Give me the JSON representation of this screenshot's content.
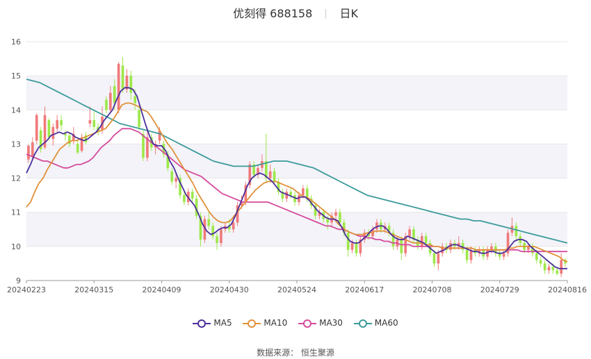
{
  "header": {
    "stock_name": "优刻得",
    "stock_code": "688158",
    "period": "日K"
  },
  "legend": {
    "items": [
      {
        "label": "MA5",
        "color": "#4b2e9a"
      },
      {
        "label": "MA10",
        "color": "#e0913a"
      },
      {
        "label": "MA30",
        "color": "#d44a9c"
      },
      {
        "label": "MA60",
        "color": "#3b9a9a"
      }
    ]
  },
  "footer": {
    "source_label": "数据来源：",
    "source_name": "恒生聚源"
  },
  "colors": {
    "up": "#f07a7a",
    "down": "#9de84a",
    "band": "#f3f3f9",
    "grid": "#e6e6e6"
  },
  "chart_data": {
    "type": "candlestick",
    "y_ticks": [
      "9",
      "10",
      "11",
      "12",
      "13",
      "14",
      "15",
      "16"
    ],
    "ylim": [
      9,
      16
    ],
    "x_ticks": [
      "20240223",
      "20240315",
      "20240409",
      "20240430",
      "20240524",
      "20240617",
      "20240708",
      "20240729",
      "20240816"
    ],
    "candles": [
      [
        12.55,
        12.95,
        12.45,
        12.98
      ],
      [
        12.65,
        13.05,
        12.55,
        13.2
      ],
      [
        13.1,
        13.85,
        13.0,
        13.9
      ],
      [
        13.4,
        12.85,
        12.75,
        13.5
      ],
      [
        12.9,
        13.85,
        12.85,
        14.1
      ],
      [
        13.7,
        13.2,
        13.1,
        13.75
      ],
      [
        13.15,
        13.5,
        12.95,
        13.6
      ],
      [
        13.45,
        13.7,
        13.35,
        13.85
      ],
      [
        13.7,
        13.55,
        13.4,
        13.85
      ],
      [
        13.3,
        13.25,
        13.1,
        13.4
      ],
      [
        13.25,
        13.0,
        12.9,
        13.35
      ],
      [
        13.1,
        13.3,
        13.0,
        13.5
      ],
      [
        13.0,
        12.75,
        12.7,
        13.1
      ],
      [
        12.8,
        13.2,
        12.75,
        13.3
      ],
      [
        13.25,
        13.05,
        13.0,
        13.35
      ],
      [
        13.6,
        13.7,
        13.5,
        14.1
      ],
      [
        13.7,
        13.5,
        13.4,
        13.95
      ],
      [
        13.5,
        13.35,
        13.25,
        13.6
      ],
      [
        13.4,
        13.8,
        13.3,
        14.1
      ],
      [
        14.3,
        14.0,
        13.9,
        14.4
      ],
      [
        14.0,
        14.5,
        13.95,
        14.7
      ],
      [
        14.7,
        14.2,
        14.0,
        14.9
      ],
      [
        14.0,
        15.35,
        13.9,
        15.4
      ],
      [
        15.3,
        14.6,
        14.5,
        15.55
      ],
      [
        14.6,
        15.0,
        14.5,
        15.2
      ],
      [
        15.0,
        14.5,
        14.3,
        15.15
      ],
      [
        14.4,
        14.2,
        14.0,
        14.6
      ],
      [
        14.0,
        13.5,
        13.4,
        14.1
      ],
      [
        13.3,
        12.6,
        12.5,
        13.4
      ],
      [
        12.6,
        13.2,
        12.5,
        13.4
      ],
      [
        13.2,
        12.9,
        12.8,
        13.3
      ],
      [
        12.9,
        13.0,
        12.7,
        13.1
      ],
      [
        13.1,
        13.4,
        13.0,
        13.5
      ],
      [
        13.0,
        12.7,
        12.6,
        13.1
      ],
      [
        12.7,
        12.3,
        12.2,
        12.8
      ],
      [
        12.2,
        11.9,
        11.8,
        12.3
      ],
      [
        11.9,
        12.0,
        11.7,
        12.1
      ],
      [
        12.0,
        11.5,
        11.4,
        12.1
      ],
      [
        11.5,
        11.3,
        11.2,
        11.6
      ],
      [
        11.3,
        11.6,
        11.2,
        11.7
      ],
      [
        11.6,
        11.4,
        11.3,
        11.7
      ],
      [
        11.4,
        10.9,
        10.8,
        11.5
      ],
      [
        10.9,
        10.2,
        10.0,
        11.0
      ],
      [
        10.2,
        10.8,
        10.1,
        10.9
      ],
      [
        10.8,
        10.6,
        10.5,
        11.0
      ],
      [
        10.6,
        10.3,
        10.2,
        10.7
      ],
      [
        10.3,
        10.1,
        9.9,
        10.4
      ],
      [
        10.1,
        10.5,
        10.0,
        10.6
      ],
      [
        10.5,
        10.6,
        10.4,
        10.7
      ],
      [
        10.6,
        10.5,
        10.4,
        10.8
      ],
      [
        10.5,
        10.7,
        10.4,
        10.9
      ],
      [
        10.7,
        11.2,
        10.6,
        11.3
      ],
      [
        11.2,
        11.3,
        11.1,
        11.5
      ],
      [
        11.3,
        11.8,
        11.2,
        11.9
      ],
      [
        11.8,
        12.4,
        11.7,
        12.5
      ],
      [
        12.4,
        12.1,
        12.0,
        12.5
      ],
      [
        12.1,
        12.3,
        12.0,
        12.4
      ],
      [
        12.3,
        12.5,
        12.2,
        12.7
      ],
      [
        12.5,
        12.0,
        11.9,
        13.3
      ],
      [
        12.0,
        12.2,
        11.9,
        12.4
      ],
      [
        12.2,
        11.9,
        11.8,
        12.3
      ],
      [
        11.9,
        11.6,
        11.5,
        12.0
      ],
      [
        11.6,
        11.4,
        11.3,
        11.7
      ],
      [
        11.4,
        11.6,
        11.3,
        11.7
      ],
      [
        11.6,
        11.5,
        11.4,
        11.7
      ],
      [
        11.5,
        11.3,
        11.2,
        11.6
      ],
      [
        11.3,
        11.5,
        11.2,
        11.6
      ],
      [
        11.5,
        11.7,
        11.4,
        11.8
      ],
      [
        11.7,
        11.4,
        11.3,
        11.8
      ],
      [
        11.4,
        11.2,
        11.1,
        11.5
      ],
      [
        11.2,
        10.9,
        10.8,
        11.3
      ],
      [
        10.9,
        11.0,
        10.8,
        11.1
      ],
      [
        11.0,
        10.8,
        10.7,
        11.1
      ],
      [
        10.8,
        10.7,
        10.5,
        10.9
      ],
      [
        10.7,
        10.9,
        10.6,
        11.0
      ],
      [
        10.9,
        11.0,
        10.7,
        11.1
      ],
      [
        11.0,
        10.7,
        10.6,
        11.1
      ],
      [
        10.7,
        10.4,
        10.3,
        10.8
      ],
      [
        10.4,
        9.9,
        9.7,
        10.5
      ],
      [
        9.9,
        10.1,
        9.8,
        10.2
      ],
      [
        10.1,
        9.8,
        9.7,
        10.2
      ],
      [
        9.8,
        10.2,
        9.7,
        10.3
      ],
      [
        10.2,
        10.4,
        10.1,
        10.5
      ],
      [
        10.4,
        10.3,
        10.2,
        10.5
      ],
      [
        10.3,
        10.5,
        10.2,
        10.6
      ],
      [
        10.5,
        10.7,
        10.4,
        10.8
      ],
      [
        10.7,
        10.5,
        10.4,
        10.8
      ],
      [
        10.5,
        10.6,
        10.4,
        10.7
      ],
      [
        10.6,
        10.4,
        10.3,
        10.7
      ],
      [
        10.4,
        10.0,
        9.9,
        10.5
      ],
      [
        10.0,
        10.2,
        9.9,
        10.3
      ],
      [
        10.2,
        9.8,
        9.6,
        10.3
      ],
      [
        9.8,
        10.3,
        9.7,
        10.4
      ],
      [
        10.3,
        10.5,
        10.2,
        10.6
      ],
      [
        10.5,
        10.2,
        10.1,
        10.6
      ],
      [
        10.2,
        10.0,
        9.9,
        10.3
      ],
      [
        10.0,
        10.3,
        9.9,
        10.4
      ],
      [
        10.3,
        10.1,
        10.0,
        10.4
      ],
      [
        10.1,
        9.8,
        9.7,
        10.2
      ],
      [
        9.8,
        9.5,
        9.4,
        9.9
      ],
      [
        9.5,
        9.8,
        9.3,
        9.9
      ],
      [
        9.8,
        10.0,
        9.7,
        10.1
      ],
      [
        10.0,
        9.9,
        9.8,
        10.1
      ],
      [
        9.9,
        10.1,
        9.8,
        10.2
      ],
      [
        10.1,
        10.0,
        9.9,
        10.2
      ],
      [
        10.0,
        10.1,
        9.9,
        10.3
      ],
      [
        10.1,
        9.9,
        9.8,
        10.2
      ],
      [
        9.9,
        9.6,
        9.5,
        10.0
      ],
      [
        9.6,
        9.9,
        9.5,
        10.0
      ],
      [
        9.9,
        9.8,
        9.7,
        10.0
      ],
      [
        9.8,
        9.9,
        9.7,
        10.0
      ],
      [
        9.9,
        9.7,
        9.6,
        10.0
      ],
      [
        9.7,
        9.9,
        9.6,
        10.0
      ],
      [
        9.9,
        10.0,
        9.8,
        10.1
      ],
      [
        10.0,
        9.8,
        9.7,
        10.1
      ],
      [
        9.8,
        9.7,
        9.6,
        9.9
      ],
      [
        9.7,
        9.8,
        9.6,
        9.9
      ],
      [
        9.8,
        10.4,
        9.7,
        10.5
      ],
      [
        10.4,
        10.6,
        10.3,
        10.85
      ],
      [
        10.6,
        10.3,
        10.2,
        10.7
      ],
      [
        10.3,
        10.1,
        10.0,
        10.4
      ],
      [
        10.1,
        9.9,
        9.8,
        10.2
      ],
      [
        9.9,
        10.0,
        9.8,
        10.1
      ],
      [
        10.0,
        9.8,
        9.7,
        10.1
      ],
      [
        9.8,
        9.6,
        9.5,
        9.9
      ],
      [
        9.6,
        9.5,
        9.4,
        9.7
      ],
      [
        9.5,
        9.3,
        9.2,
        9.6
      ],
      [
        9.3,
        9.4,
        9.2,
        9.5
      ],
      [
        9.4,
        9.3,
        9.2,
        9.5
      ],
      [
        9.3,
        9.2,
        9.15,
        9.4
      ],
      [
        9.2,
        9.6,
        9.1,
        9.8
      ],
      [
        9.6,
        9.5,
        9.4,
        9.65
      ]
    ],
    "ma5": [
      12.15,
      12.4,
      12.7,
      12.9,
      13.0,
      13.1,
      13.25,
      13.3,
      13.35,
      13.3,
      13.35,
      13.3,
      13.2,
      13.15,
      13.1,
      13.15,
      13.25,
      13.35,
      13.5,
      13.7,
      13.85,
      14.0,
      14.3,
      14.55,
      14.65,
      14.65,
      14.6,
      14.4,
      14.0,
      13.6,
      13.25,
      13.0,
      12.95,
      12.95,
      12.8,
      12.5,
      12.3,
      12.0,
      11.75,
      11.5,
      11.35,
      11.2,
      10.95,
      10.65,
      10.45,
      10.35,
      10.4,
      10.5,
      10.55,
      10.55,
      10.65,
      10.9,
      11.2,
      11.5,
      11.8,
      12.0,
      12.1,
      12.15,
      12.1,
      12.0,
      11.9,
      11.75,
      11.6,
      11.55,
      11.5,
      11.45,
      11.4,
      11.45,
      11.45,
      11.35,
      11.2,
      11.05,
      10.95,
      10.85,
      10.8,
      10.8,
      10.75,
      10.55,
      10.3,
      10.15,
      10.1,
      10.1,
      10.2,
      10.3,
      10.45,
      10.55,
      10.6,
      10.6,
      10.5,
      10.35,
      10.25,
      10.2,
      10.2,
      10.3,
      10.25,
      10.2,
      10.15,
      10.1,
      10.0,
      9.9,
      9.8,
      9.85,
      9.9,
      10.0,
      10.05,
      10.05,
      10.0,
      9.95,
      9.9,
      9.85,
      9.85,
      9.8,
      9.8,
      9.85,
      9.85,
      9.8,
      9.8,
      9.85,
      10.0,
      10.15,
      10.2,
      10.2,
      10.15,
      10.0,
      9.9,
      9.8,
      9.7,
      9.6,
      9.5,
      9.4,
      9.35,
      9.35,
      9.35
    ],
    "ma10": [
      11.15,
      11.3,
      11.6,
      11.85,
      12.0,
      12.25,
      12.45,
      12.65,
      12.85,
      12.95,
      13.05,
      13.1,
      13.1,
      13.15,
      13.2,
      13.25,
      13.3,
      13.35,
      13.4,
      13.45,
      13.6,
      13.75,
      13.95,
      14.15,
      14.2,
      14.2,
      14.15,
      14.1,
      14.0,
      13.95,
      13.8,
      13.6,
      13.4,
      13.2,
      13.0,
      12.85,
      12.65,
      12.45,
      12.25,
      12.05,
      11.85,
      11.6,
      11.4,
      11.2,
      11.0,
      10.85,
      10.75,
      10.7,
      10.7,
      10.75,
      10.9,
      11.05,
      11.2,
      11.35,
      11.5,
      11.65,
      11.75,
      11.85,
      11.9,
      11.9,
      11.9,
      11.85,
      11.8,
      11.75,
      11.7,
      11.6,
      11.5,
      11.45,
      11.4,
      11.3,
      11.2,
      11.1,
      11.0,
      10.9,
      10.8,
      10.65,
      10.55,
      10.45,
      10.4,
      10.35,
      10.35,
      10.35,
      10.4,
      10.4,
      10.45,
      10.45,
      10.45,
      10.4,
      10.35,
      10.3,
      10.25,
      10.2,
      10.15,
      10.1,
      10.1,
      10.1,
      10.05,
      10.05,
      10.0,
      10.0,
      9.95,
      9.95,
      9.95,
      9.95,
      9.95,
      9.95,
      9.95,
      9.95,
      9.9,
      9.9,
      9.9,
      9.9,
      9.9,
      9.9,
      9.9,
      9.9,
      9.95,
      9.95,
      10.0,
      10.0,
      10.0,
      10.0,
      10.0,
      9.95,
      9.9,
      9.85,
      9.8,
      9.75,
      9.7,
      9.6,
      9.55
    ],
    "ma30": [
      12.7,
      12.65,
      12.6,
      12.55,
      12.5,
      12.5,
      12.45,
      12.4,
      12.35,
      12.3,
      12.3,
      12.35,
      12.4,
      12.4,
      12.45,
      12.5,
      12.6,
      12.75,
      12.9,
      13.0,
      13.1,
      13.25,
      13.35,
      13.45,
      13.45,
      13.45,
      13.4,
      13.35,
      13.25,
      13.15,
      13.05,
      12.95,
      12.85,
      12.75,
      12.65,
      12.55,
      12.45,
      12.35,
      12.25,
      12.2,
      12.15,
      12.1,
      12.05,
      11.95,
      11.85,
      11.75,
      11.65,
      11.55,
      11.5,
      11.45,
      11.4,
      11.35,
      11.3,
      11.3,
      11.3,
      11.3,
      11.3,
      11.3,
      11.3,
      11.25,
      11.2,
      11.15,
      11.1,
      11.05,
      11.0,
      10.95,
      10.9,
      10.85,
      10.8,
      10.75,
      10.7,
      10.65,
      10.6,
      10.6,
      10.55,
      10.5,
      10.5,
      10.45,
      10.4,
      10.35,
      10.3,
      10.3,
      10.25,
      10.25,
      10.2,
      10.2,
      10.15,
      10.15,
      10.1,
      10.1,
      10.05,
      10.05,
      10.05,
      10.0,
      10.0,
      10.0,
      10.0,
      10.0,
      10.0,
      10.0,
      9.95,
      9.95,
      9.95,
      9.95,
      9.95,
      9.95,
      9.95,
      9.95,
      9.9,
      9.9,
      9.9,
      9.9,
      9.9,
      9.9,
      9.9,
      9.9,
      9.9,
      9.9,
      9.9,
      9.85,
      9.85,
      9.85,
      9.85,
      9.85,
      9.85,
      9.85,
      9.85,
      9.85,
      9.85,
      9.85,
      9.85
    ],
    "ma60": [
      14.9,
      14.85,
      14.8,
      14.7,
      14.6,
      14.5,
      14.4,
      14.3,
      14.2,
      14.1,
      14.0,
      13.9,
      13.8,
      13.7,
      13.6,
      13.55,
      13.5,
      13.45,
      13.4,
      13.35,
      13.3,
      13.2,
      13.1,
      13.0,
      12.9,
      12.8,
      12.7,
      12.6,
      12.5,
      12.45,
      12.4,
      12.35,
      12.35,
      12.35,
      12.35,
      12.4,
      12.45,
      12.5,
      12.5,
      12.5,
      12.45,
      12.4,
      12.35,
      12.3,
      12.2,
      12.1,
      12.0,
      11.9,
      11.8,
      11.7,
      11.6,
      11.5,
      11.45,
      11.4,
      11.35,
      11.3,
      11.25,
      11.2,
      11.15,
      11.1,
      11.05,
      11.0,
      10.95,
      10.9,
      10.85,
      10.8,
      10.8,
      10.75,
      10.75,
      10.7,
      10.65,
      10.6,
      10.55,
      10.5,
      10.45,
      10.4,
      10.35,
      10.3,
      10.25,
      10.2,
      10.15,
      10.1
    ]
  }
}
